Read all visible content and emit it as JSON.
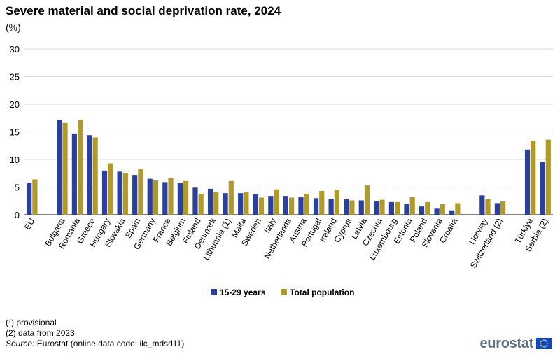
{
  "header": {
    "title": "Severe material and social deprivation rate, 2024",
    "unit": "(%)"
  },
  "chart_data": {
    "type": "bar",
    "title": "Severe material and social deprivation rate, 2024",
    "ylabel": "(%)",
    "xlabel": "",
    "ylim": [
      0,
      30
    ],
    "yticks": [
      0,
      5,
      10,
      15,
      20,
      25,
      30
    ],
    "grid": true,
    "legend_position": "bottom-center",
    "categories": [
      "EU",
      "Bulgaria",
      "Romania",
      "Greece",
      "Hungary",
      "Slovakia",
      "Spain",
      "Germany",
      "France",
      "Belgium",
      "Finland",
      "Denmark",
      "Lithuania (1)",
      "Malta",
      "Sweden",
      "Italy",
      "Netherlands",
      "Austria",
      "Portugal",
      "Ireland",
      "Cyprus",
      "Latvia",
      "Czechia",
      "Luxembourg",
      "Estonia",
      "Poland",
      "Slovenia",
      "Croatia",
      "Norway",
      "Switzerland (2)",
      "Türkiye",
      "Serbia (2)"
    ],
    "groups_after_index": [
      0,
      27,
      29
    ],
    "series": [
      {
        "name": "15-29 years",
        "color": "#2a3f9e",
        "values": [
          5.8,
          17.2,
          14.7,
          14.4,
          8.0,
          7.8,
          7.2,
          6.5,
          5.9,
          5.7,
          4.9,
          4.7,
          3.9,
          3.9,
          3.7,
          3.4,
          3.4,
          3.2,
          3.0,
          2.9,
          2.9,
          2.6,
          2.4,
          2.3,
          2.0,
          1.5,
          1.1,
          0.8,
          3.5,
          2.1,
          11.8,
          9.5
        ]
      },
      {
        "name": "Total population",
        "color": "#b09a2a",
        "values": [
          6.4,
          16.6,
          17.2,
          14.0,
          9.3,
          7.6,
          8.3,
          6.2,
          6.6,
          6.1,
          3.8,
          4.1,
          6.1,
          4.1,
          3.1,
          4.6,
          3.1,
          3.8,
          4.3,
          4.5,
          2.6,
          5.3,
          2.7,
          2.3,
          3.2,
          2.3,
          1.9,
          2.1,
          2.9,
          2.4,
          13.4,
          13.6
        ]
      }
    ]
  },
  "footnotes": {
    "note1": "(¹) provisional",
    "note2": "(2) data from 2023",
    "source_label": "Source:",
    "source_text": " Eurostat (online data code: ilc_mdsd11)"
  },
  "logo": {
    "text": "eurostat",
    "flag_icon": "eu-flag-icon"
  }
}
